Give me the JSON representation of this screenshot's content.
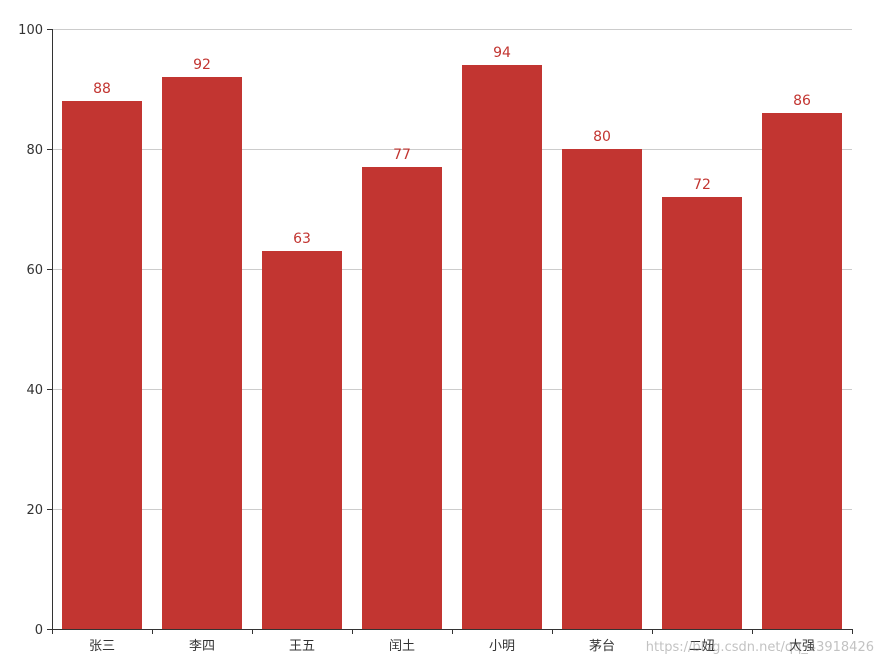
{
  "chart_data": {
    "type": "bar",
    "categories": [
      "张三",
      "李四",
      "王五",
      "闰土",
      "小明",
      "茅台",
      "二妞",
      "大强"
    ],
    "series": [
      {
        "values": [
          88,
          92,
          63,
          77,
          94,
          80,
          72,
          86
        ]
      }
    ],
    "ylim": [
      0,
      100
    ],
    "yticks": [
      0,
      20,
      40,
      60,
      80,
      100
    ],
    "grid": true,
    "data_labels": true,
    "colors": {
      "bar": "#c23531",
      "grid": "#cccccc",
      "axis": "#333333",
      "label": "#c23531"
    }
  },
  "watermark": "https://blog.csdn.net/qq_43918426"
}
